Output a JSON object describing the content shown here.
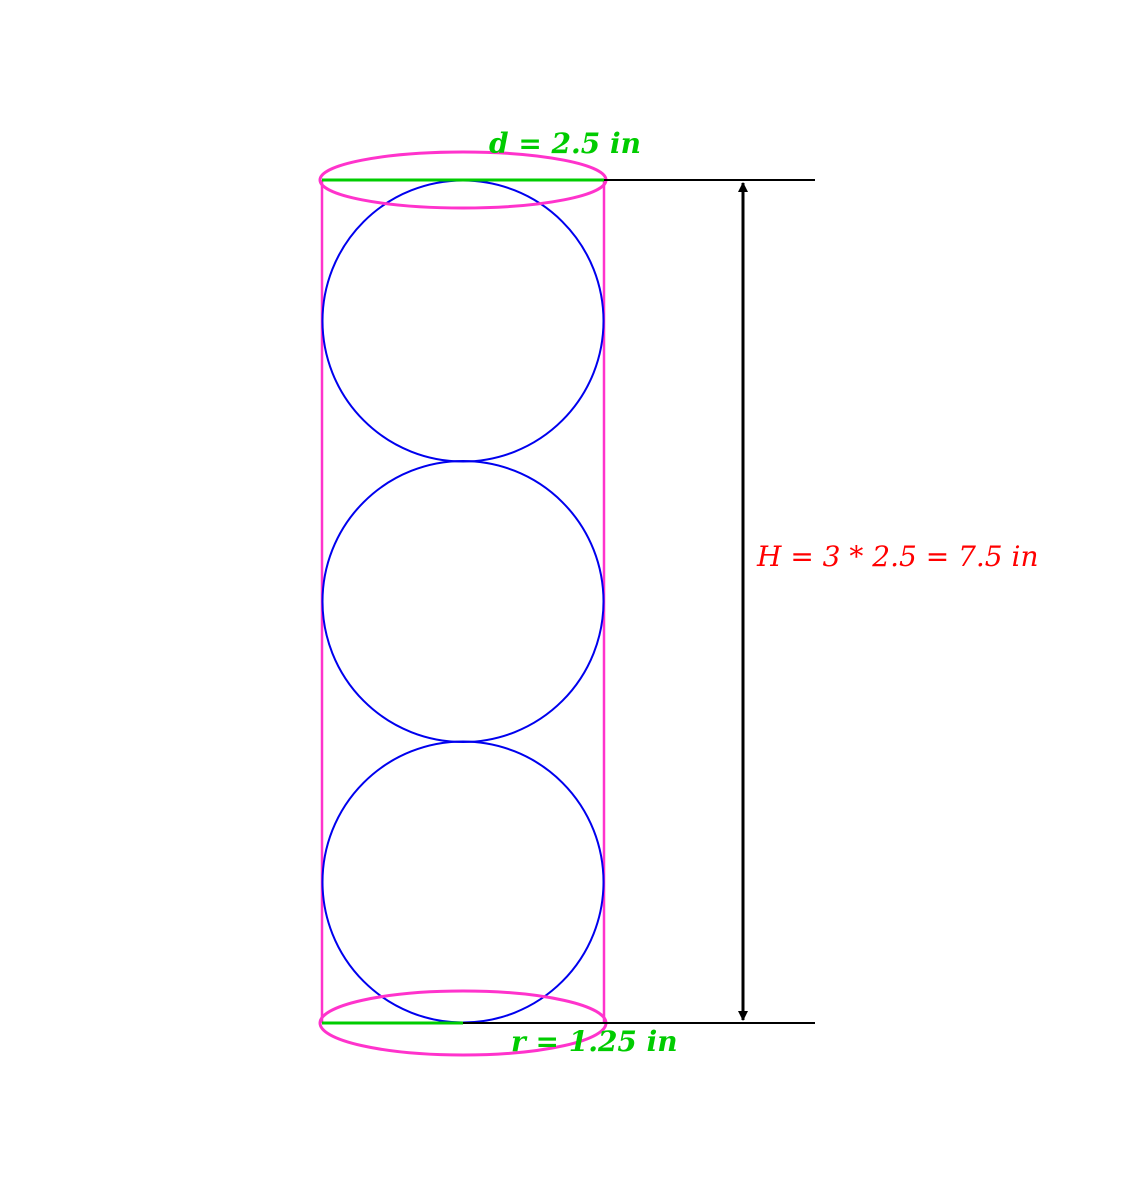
{
  "labels": {
    "diameter": "d = 2.5 in",
    "height": "H = 3 * 2.5 = 7.5 in",
    "radius": "r = 1.25 in"
  },
  "measurements": {
    "diameter_in": 2.5,
    "radius_in": 1.25,
    "height_in": 7.5,
    "sphere_count": 3
  },
  "colors": {
    "cylinder": "#ff33cc",
    "spheres": "#0000ee",
    "diameter_radius": "#00cc00",
    "height_label": "#ff0000",
    "dimension_line": "#000000"
  }
}
